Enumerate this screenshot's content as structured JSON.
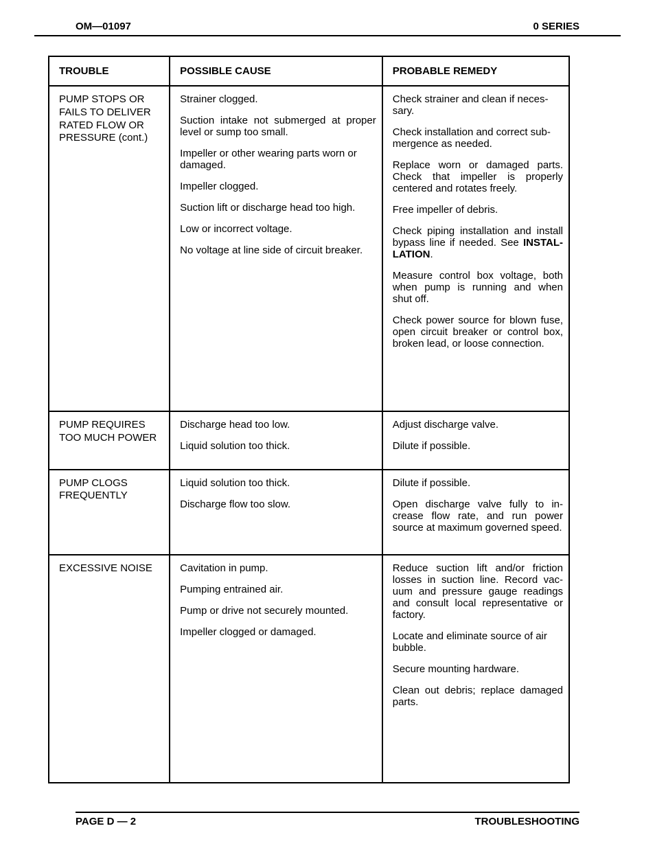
{
  "header": {
    "left": "OM—01097",
    "right": "0 SERIES"
  },
  "columns": {
    "trouble": "TROUBLE",
    "cause": "POSSIBLE CAUSE",
    "remedy": "PROBABLE REMEDY"
  },
  "groups": [
    {
      "trouble": "PUMP STOPS OR FAILS TO DELIVER RATED FLOW OR PRESSURE (cont.)",
      "rows": [
        {
          "cause": "Strainer clogged.",
          "remedy": "Check strainer and clean if neces­sary.",
          "remedy_justify": false
        },
        {
          "cause": "Suction intake not submerged at proper level or sump too small.",
          "cause_justify": true,
          "remedy": "Check installation and correct sub­mergence as needed.",
          "remedy_justify": false
        },
        {
          "cause": "Impeller or other wearing parts worn or damaged.",
          "remedy": "Replace worn or damaged parts. Check that impeller is properly centered and rotates freely.",
          "remedy_justify": true
        },
        {
          "cause": "Impeller clogged.",
          "remedy": "Free impeller of debris."
        },
        {
          "cause": "Suction lift or discharge head too high.",
          "remedy_html": "Check piping installation and install bypass line if needed. See <b>INSTAL­LATION</b>.",
          "remedy_justify": true
        },
        {
          "cause": "Low or incorrect voltage.",
          "remedy": "Measure control box voltage, both when pump is running and when shut off.",
          "remedy_justify": true
        },
        {
          "cause": "No voltage at line side of circuit breaker.",
          "cause_justify": true,
          "remedy": "Check power source for blown fuse, open circuit breaker or control box, broken lead, or loose connection.",
          "remedy_justify": true
        }
      ]
    },
    {
      "trouble": "PUMP REQUIRES TOO MUCH POWER",
      "rows": [
        {
          "cause": "Discharge head too low.",
          "remedy": "Adjust discharge valve."
        },
        {
          "cause": "Liquid solution too thick.",
          "remedy": "Dilute if possible."
        }
      ]
    },
    {
      "trouble": "PUMP CLOGS FREQUENTLY",
      "rows": [
        {
          "cause": "Liquid solution too thick.",
          "remedy": "Dilute if possible."
        },
        {
          "cause": "Discharge flow too slow.",
          "remedy": "Open discharge valve fully to in­crease flow rate, and run power source at maximum governed speed.",
          "remedy_justify": true
        }
      ]
    },
    {
      "trouble": "EXCESSIVE NOISE",
      "rows": [
        {
          "cause": "Cavitation in pump.",
          "remedy": "Reduce suction lift and/or friction losses in suction line. Record vac­uum and pressure gauge readings and consult local representative or factory.",
          "remedy_justify": true
        },
        {
          "cause": "Pumping entrained air.",
          "remedy": "Locate and eliminate source of air bubble."
        },
        {
          "cause": "Pump or drive not securely mounted.",
          "remedy": "Secure mounting hardware."
        },
        {
          "cause": "Impeller clogged or damaged.",
          "remedy": "Clean out debris; replace dam­aged parts.",
          "remedy_justify": true
        }
      ],
      "extra_bottom": true
    }
  ],
  "footer": {
    "left": "PAGE D — 2",
    "right": "TROUBLESHOOTING"
  }
}
